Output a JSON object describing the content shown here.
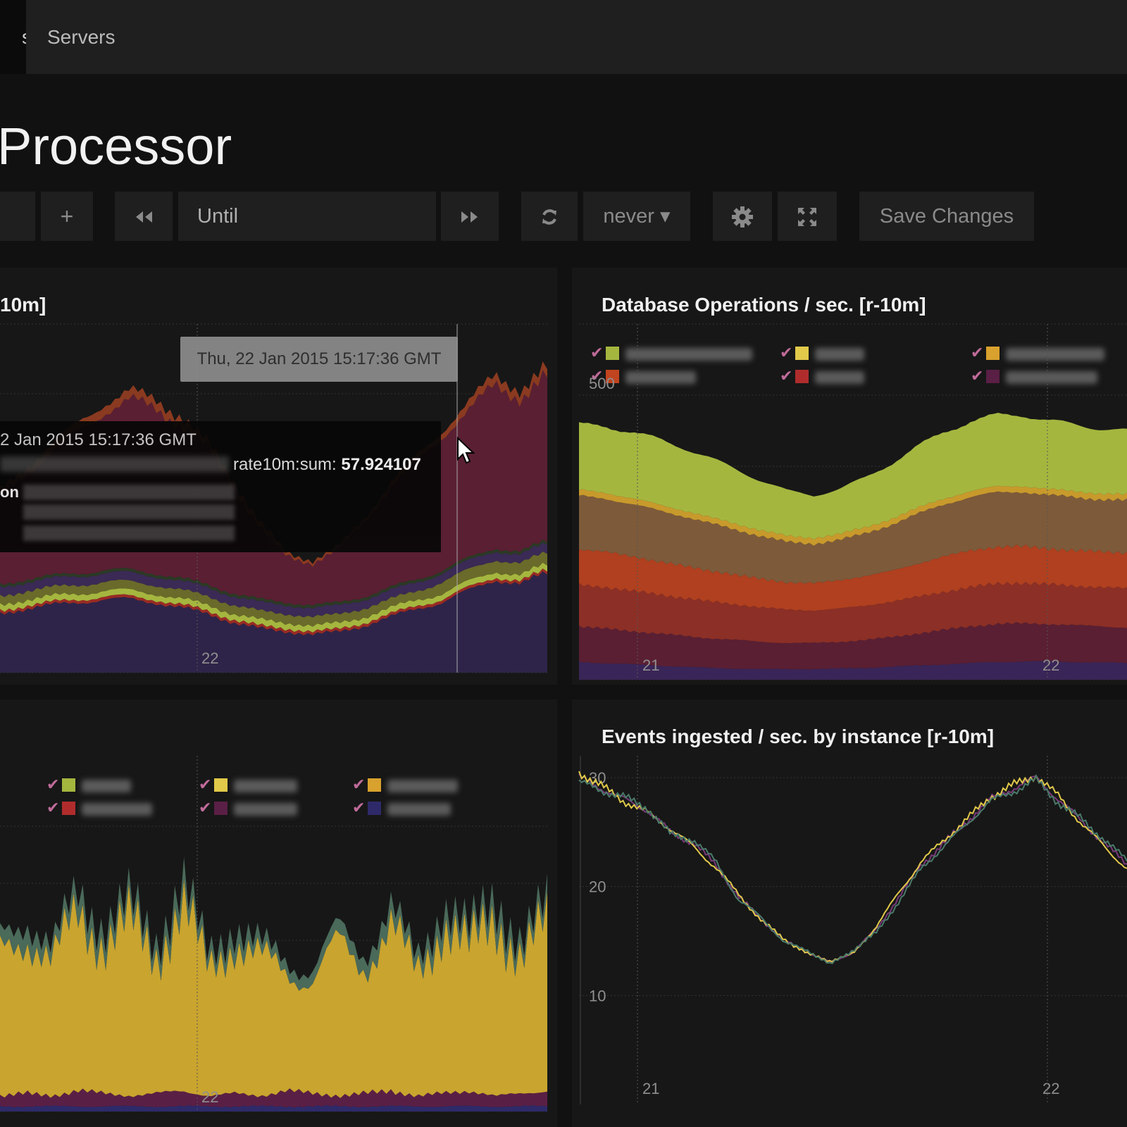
{
  "nav": {
    "tabs": [
      {
        "label": "s"
      },
      {
        "label": "Servers"
      }
    ]
  },
  "dashboard": {
    "title": "Processor"
  },
  "toolbar": {
    "add_label": "+",
    "until_label": "Until",
    "refresh_interval": "never ▾",
    "save_label": "Save Changes"
  },
  "icons": [
    "rewind-icon",
    "fast-forward-icon",
    "refresh-icon",
    "gear-icon",
    "fullscreen-icon",
    "cursor-icon",
    "checkmark-icon"
  ],
  "colors": {
    "background": "#111111",
    "panel": "#171717",
    "navbar": "#1f1f1f",
    "series": [
      "#a5b63f",
      "#e1c94a",
      "#c89a2c",
      "#7d5a3a",
      "#a83c1e",
      "#7a2626",
      "#5a1f33",
      "#2e2449"
    ]
  },
  "panels": [
    {
      "title": "10m]",
      "tooltip_small": "Thu, 22 Jan 2015 15:17:36 GMT",
      "tooltip": {
        "date": "2 Jan 2015 15:17:36 GMT",
        "series_suffix": "rate10m:sum: ",
        "value": "57.924107",
        "label2": "on"
      },
      "legend": []
    },
    {
      "title": "Database Operations / sec. [r-10m]",
      "legend": [
        {
          "color": "#a5b63f"
        },
        {
          "color": "#e1c94a"
        },
        {
          "color": "#d9a12d"
        },
        {
          "color": "#c0441f"
        },
        {
          "color": "#b02c2c"
        },
        {
          "color": "#5a1f45"
        }
      ]
    },
    {
      "title": "",
      "legend": [
        {
          "color": "#a5b63f"
        },
        {
          "color": "#e1c94a"
        },
        {
          "color": "#d9a12d"
        },
        {
          "color": "#b02c2c"
        },
        {
          "color": "#5a1f45"
        },
        {
          "color": "#2e2a6a"
        }
      ]
    },
    {
      "title": "Events ingested / sec. by instance [r-10m]",
      "legend": []
    }
  ],
  "chart_data": [
    {
      "type": "area",
      "title": "10m]",
      "x_ticks": [
        "22"
      ],
      "stacked": true,
      "series": [
        {
          "values": [
            20,
            22,
            23,
            24,
            25,
            25,
            24,
            22,
            20,
            17,
            15,
            14,
            13,
            14,
            16,
            19,
            22,
            24,
            28,
            32,
            30,
            34
          ]
        },
        {
          "values": [
            1,
            1,
            1,
            1,
            1,
            1,
            1,
            1,
            1,
            1,
            1,
            1,
            1,
            1,
            1,
            1,
            1,
            1,
            1,
            1,
            1,
            1
          ]
        },
        {
          "values": [
            2,
            2,
            2,
            2,
            2,
            2,
            2,
            2,
            2,
            2,
            2,
            2,
            2,
            2,
            2,
            2,
            2,
            2,
            2,
            2,
            2,
            2
          ]
        },
        {
          "values": [
            3,
            3,
            3,
            3,
            3,
            3,
            3,
            3,
            3,
            3,
            3,
            3,
            3,
            3,
            3,
            3,
            3,
            4,
            4,
            4,
            4,
            4
          ]
        },
        {
          "values": [
            3,
            3,
            3,
            3,
            3,
            3,
            3,
            3,
            3,
            3,
            3,
            3,
            3,
            3,
            3,
            3,
            3,
            3,
            3,
            3,
            3,
            3
          ]
        },
        {
          "values": [
            1,
            1,
            1,
            1,
            1,
            1,
            1,
            1,
            1,
            1,
            1,
            1,
            1,
            1,
            1,
            1,
            1,
            1,
            1,
            1,
            1,
            1
          ]
        },
        {
          "values": [
            30,
            36,
            42,
            48,
            54,
            58,
            56,
            52,
            46,
            36,
            24,
            16,
            14,
            18,
            26,
            34,
            40,
            46,
            50,
            56,
            52,
            56
          ]
        },
        {
          "values": [
            2,
            2,
            3,
            3,
            3,
            3,
            3,
            3,
            2,
            2,
            2,
            1,
            1,
            1,
            1,
            2,
            2,
            2,
            3,
            3,
            3,
            3
          ]
        }
      ]
    },
    {
      "type": "area",
      "title": "Database Operations / sec. [r-10m]",
      "y_ticks": [
        500
      ],
      "x_ticks": [
        "21",
        "22"
      ],
      "ylim": [
        0,
        600
      ],
      "stacked": true,
      "series": [
        {
          "values": [
            30,
            28,
            26,
            24,
            22,
            20,
            19,
            18,
            18,
            18,
            19,
            20,
            22,
            24,
            26,
            28,
            30,
            31,
            31,
            30,
            29,
            28
          ]
        },
        {
          "values": [
            60,
            58,
            56,
            54,
            52,
            50,
            48,
            46,
            44,
            44,
            45,
            47,
            50,
            54,
            58,
            62,
            64,
            64,
            63,
            62,
            61,
            60
          ]
        },
        {
          "values": [
            70,
            70,
            68,
            66,
            64,
            62,
            60,
            58,
            56,
            55,
            56,
            58,
            60,
            62,
            64,
            66,
            68,
            68,
            67,
            66,
            66,
            66
          ]
        },
        {
          "values": [
            60,
            60,
            58,
            56,
            54,
            52,
            50,
            48,
            46,
            46,
            48,
            50,
            52,
            56,
            60,
            62,
            62,
            62,
            60,
            60,
            60,
            60
          ]
        },
        {
          "values": [
            90,
            90,
            88,
            86,
            84,
            80,
            76,
            72,
            68,
            66,
            68,
            72,
            78,
            84,
            88,
            90,
            92,
            92,
            90,
            90,
            88,
            88
          ]
        },
        {
          "values": [
            10,
            10,
            10,
            10,
            10,
            10,
            10,
            10,
            10,
            10,
            10,
            10,
            10,
            10,
            10,
            10,
            10,
            10,
            10,
            10,
            10,
            10
          ]
        },
        {
          "values": [
            110,
            112,
            112,
            110,
            106,
            100,
            92,
            84,
            76,
            72,
            76,
            84,
            94,
            104,
            112,
            118,
            120,
            120,
            116,
            112,
            110,
            108
          ]
        }
      ]
    },
    {
      "type": "area",
      "title": "",
      "x_ticks": [
        "22"
      ],
      "stacked": true,
      "series": [
        {
          "values": [
            2,
            2,
            2,
            2,
            2,
            2,
            2,
            2,
            2,
            2,
            2,
            2,
            2,
            2,
            2,
            2,
            2,
            2,
            2,
            2,
            2,
            2
          ]
        },
        {
          "values": [
            4,
            5,
            4,
            6,
            5,
            4,
            5,
            6,
            4,
            5,
            4,
            6,
            5,
            4,
            5,
            6,
            4,
            5,
            6,
            4,
            5,
            6
          ]
        },
        {
          "values": [
            55,
            62,
            50,
            70,
            58,
            66,
            54,
            72,
            48,
            60,
            52,
            46,
            44,
            58,
            50,
            62,
            48,
            66,
            54,
            70,
            52,
            64
          ]
        },
        {
          "values": [
            6,
            7,
            5,
            8,
            6,
            7,
            5,
            8,
            5,
            6,
            5,
            4,
            4,
            6,
            5,
            7,
            5,
            7,
            6,
            8,
            5,
            7
          ]
        }
      ]
    },
    {
      "type": "line",
      "title": "Events ingested / sec. by instance [r-10m]",
      "y_ticks": [
        10,
        20,
        30
      ],
      "x_ticks": [
        "21",
        "22"
      ],
      "ylim": [
        0,
        32
      ],
      "series": [
        {
          "values": [
            30,
            29,
            28,
            27,
            25,
            24,
            22,
            19,
            17,
            15,
            14,
            13,
            14,
            16,
            19,
            22,
            24,
            26,
            28,
            29,
            30,
            28,
            26,
            24,
            22
          ]
        },
        {
          "values": [
            30.5,
            29.2,
            27.8,
            26.8,
            25.3,
            23.7,
            21.7,
            19.3,
            16.8,
            15.2,
            13.8,
            13.2,
            13.8,
            16.3,
            19.4,
            22.3,
            24.3,
            26.2,
            28.2,
            29.3,
            30.2,
            28.3,
            25.8,
            23.7,
            21.6
          ]
        },
        {
          "values": [
            29.6,
            28.8,
            28.2,
            27.2,
            24.8,
            24.3,
            22.3,
            18.7,
            17.2,
            14.8,
            14.2,
            12.8,
            14.2,
            15.7,
            18.6,
            21.7,
            23.7,
            25.8,
            27.8,
            28.7,
            29.8,
            27.7,
            26.2,
            24.3,
            22.4
          ]
        }
      ]
    }
  ]
}
